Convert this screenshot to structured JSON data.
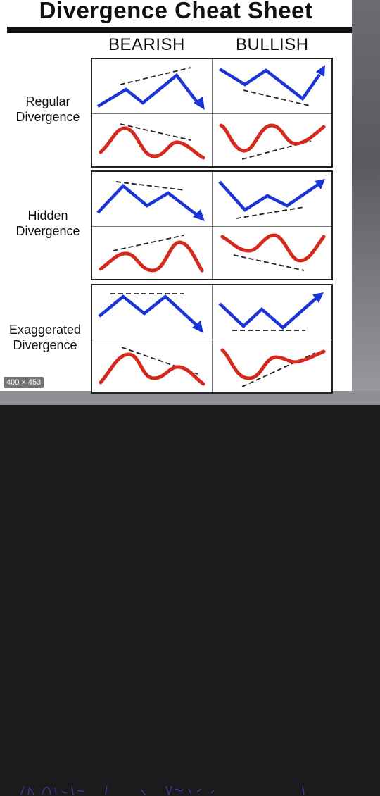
{
  "sheet": {
    "title": "Divergence Cheat Sheet",
    "columns": [
      "BEARISH",
      "BULLISH"
    ],
    "rows": [
      {
        "label_line1": "Regular",
        "label_line2": "Divergence"
      },
      {
        "label_line1": "Hidden",
        "label_line2": "Divergence"
      },
      {
        "label_line1": "Exaggerated",
        "label_line2": "Divergence"
      }
    ]
  },
  "badge": "400 × 453",
  "colors": {
    "price_line": "#1a34d6",
    "oscillator_line": "#d42a1e",
    "trend_dash": "#222222"
  }
}
